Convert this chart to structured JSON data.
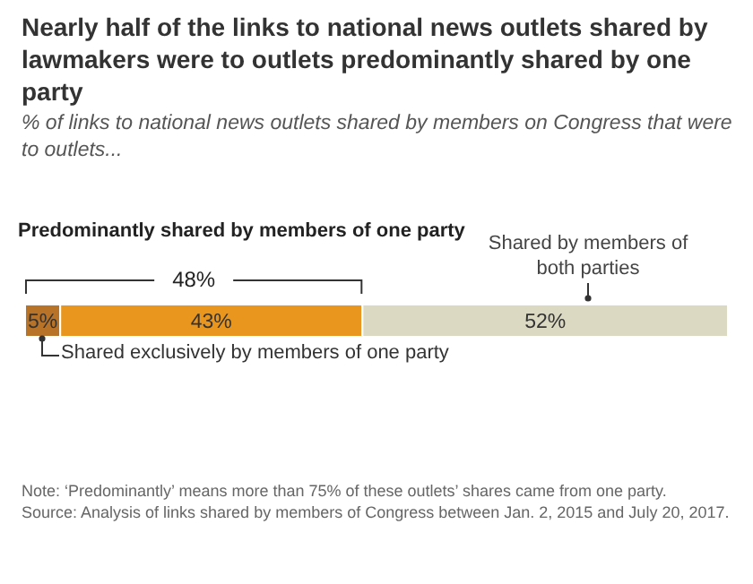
{
  "chart_data": {
    "type": "bar",
    "orientation": "horizontal",
    "stacked": true,
    "title": "Nearly half of the links to national news outlets shared by lawmakers were to outlets predominantly shared by one party",
    "subtitle": "% of links to national news outlets shared by members on Congress that were to outlets...",
    "categories": [
      null
    ],
    "series": [
      {
        "color": "#b87328",
        "values": [
          5
        ],
        "value_labels": [
          "5%"
        ]
      },
      {
        "color": "#e8961e",
        "values": [
          43
        ],
        "value_labels": [
          "43%"
        ]
      },
      {
        "color": "#dcd9c3",
        "values": [
          52
        ],
        "value_labels": [
          "52%"
        ]
      }
    ],
    "annotations": [
      "Predominantly shared by members of one party",
      "48%",
      "Shared by members of both parties",
      "Shared exclusively by members of one party",
      "Note: ‘Predominantly’ means more than 75% of these outlets’ shares came from one party.",
      "Source: Analysis of links shared by members of Congress between Jan. 2, 2015 and July 20, 2017."
    ]
  }
}
